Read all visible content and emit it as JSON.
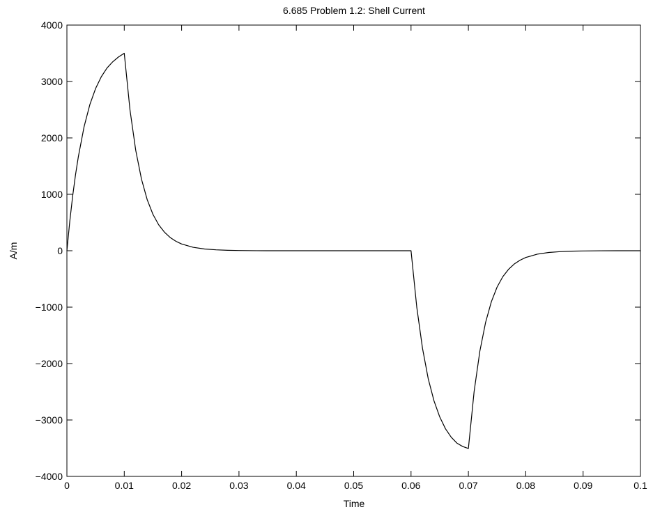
{
  "chart_data": {
    "type": "line",
    "title": "6.685 Problem 1.2: Shell Current",
    "xlabel": "Time",
    "ylabel": "A/m",
    "xlim": [
      0,
      0.1
    ],
    "ylim": [
      -4000,
      4000
    ],
    "xticks": [
      0,
      0.01,
      0.02,
      0.03,
      0.04,
      0.05,
      0.06,
      0.07,
      0.08,
      0.09,
      0.1
    ],
    "xtick_labels": [
      "0",
      "0.01",
      "0.02",
      "0.03",
      "0.04",
      "0.05",
      "0.06",
      "0.07",
      "0.08",
      "0.09",
      "0.1"
    ],
    "yticks": [
      -4000,
      -3000,
      -2000,
      -1000,
      0,
      1000,
      2000,
      3000,
      4000
    ],
    "ytick_labels": [
      "−4000",
      "−3000",
      "−2000",
      "−1000",
      "0",
      "1000",
      "2000",
      "3000",
      "4000"
    ],
    "grid": false,
    "line_color": "#000000",
    "series": [
      {
        "x": [
          0,
          0.0005,
          0.001,
          0.0015,
          0.002,
          0.003,
          0.004,
          0.005,
          0.006,
          0.007,
          0.008,
          0.009,
          0.01,
          0.011,
          0.012,
          0.013,
          0.014,
          0.015,
          0.016,
          0.017,
          0.018,
          0.019,
          0.02,
          0.022,
          0.024,
          0.026,
          0.028,
          0.03,
          0.033,
          0.036,
          0.04,
          0.045,
          0.05,
          0.055,
          0.06,
          0.061,
          0.062,
          0.063,
          0.064,
          0.065,
          0.066,
          0.067,
          0.068,
          0.069,
          0.07,
          0.071,
          0.072,
          0.073,
          0.074,
          0.075,
          0.076,
          0.077,
          0.078,
          0.079,
          0.08,
          0.082,
          0.084,
          0.086,
          0.088,
          0.09,
          0.093,
          0.096,
          0.1
        ],
        "y": [
          0,
          520,
          965,
          1345,
          1670,
          2200,
          2590,
          2875,
          3085,
          3240,
          3350,
          3435,
          3500,
          2495,
          1780,
          1270,
          905,
          645,
          460,
          330,
          235,
          168,
          120,
          61,
          31,
          16,
          8,
          4,
          1,
          0,
          0,
          0,
          0,
          0,
          0,
          -1000,
          -1730,
          -2270,
          -2660,
          -2945,
          -3155,
          -3305,
          -3410,
          -3470,
          -3505,
          -2495,
          -1780,
          -1270,
          -905,
          -645,
          -460,
          -330,
          -235,
          -168,
          -120,
          -61,
          -31,
          -16,
          -8,
          -4,
          -1,
          0,
          0
        ]
      }
    ]
  }
}
